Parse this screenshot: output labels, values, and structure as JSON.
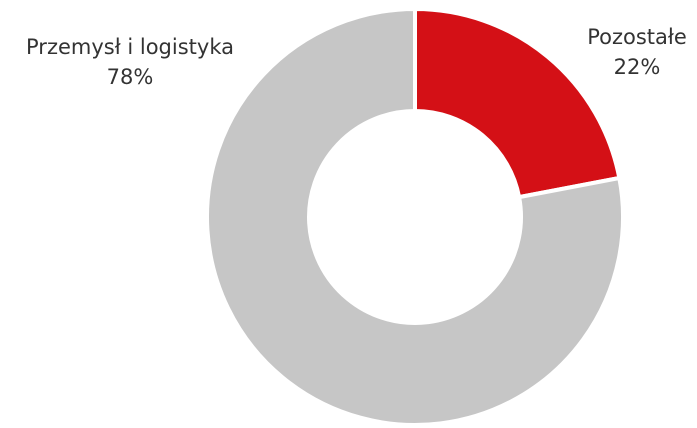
{
  "chart_data": {
    "type": "donut",
    "categories": [
      "Pozostałe",
      "Przemysł i logistyka"
    ],
    "values": [
      22,
      78
    ],
    "value_labels": [
      "22%",
      "78%"
    ],
    "colors": [
      "#d41016",
      "#c6c6c6"
    ]
  }
}
